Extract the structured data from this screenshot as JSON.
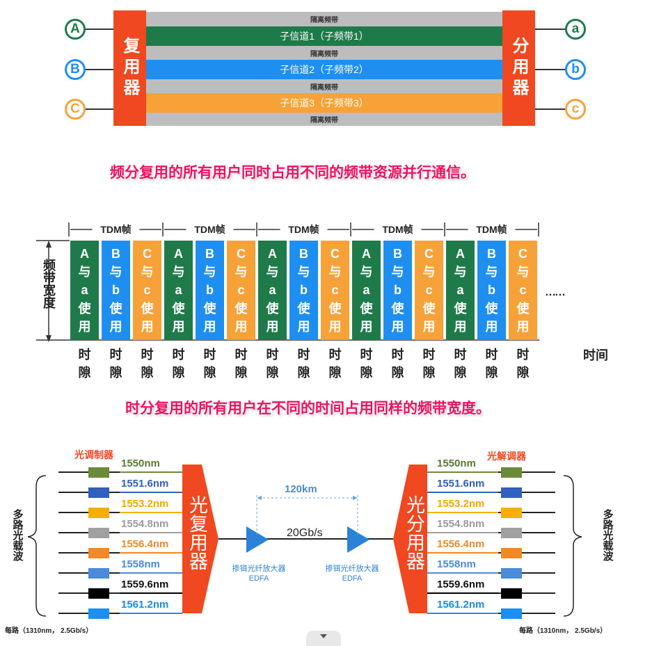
{
  "fdm": {
    "mux_label": "复用器",
    "demux_label": "分用器",
    "inputs": [
      "A",
      "B",
      "C"
    ],
    "outputs": [
      "a",
      "b",
      "c"
    ],
    "guard_label": "隔离频带",
    "channels": [
      "子信道1（子频带1）",
      "子信道2（子频带2）",
      "子信道3（子频带3）"
    ],
    "colors": {
      "green": "#1f7a4a",
      "blue": "#1e8ff0",
      "orange": "#f7a238",
      "red": "#f04820"
    },
    "caption": "频分复用的所有用户同时占用不同的频带资源并行通信。"
  },
  "tdm": {
    "frame_label": "TDM帧",
    "y_label": "频带宽度",
    "x_label": "时间",
    "slot_label": "时隙",
    "ellipsis": "……",
    "frames": [
      {
        "slots": [
          {
            "text": "A与a使用",
            "color": "#1f7a4a"
          },
          {
            "text": "B与b使用",
            "color": "#1e8ff0"
          },
          {
            "text": "C与c使用",
            "color": "#f7a238"
          }
        ]
      },
      {
        "slots": [
          {
            "text": "A与a使用",
            "color": "#1f7a4a"
          },
          {
            "text": "B与b使用",
            "color": "#1e8ff0"
          },
          {
            "text": "C与c使用",
            "color": "#f7a238"
          }
        ]
      },
      {
        "slots": [
          {
            "text": "A与a使用",
            "color": "#1f7a4a"
          },
          {
            "text": "B与b使用",
            "color": "#1e8ff0"
          },
          {
            "text": "C与c使用",
            "color": "#f7a238"
          }
        ]
      },
      {
        "slots": [
          {
            "text": "A与a使用",
            "color": "#1f7a4a"
          },
          {
            "text": "B与b使用",
            "color": "#1e8ff0"
          },
          {
            "text": "C与c使用",
            "color": "#f7a238"
          }
        ]
      },
      {
        "slots": [
          {
            "text": "A与a使用",
            "color": "#1f7a4a"
          },
          {
            "text": "B与b使用",
            "color": "#1e8ff0"
          },
          {
            "text": "C与c使用",
            "color": "#f7a238"
          }
        ]
      }
    ],
    "caption": "时分复用的所有用户在不同的时间占用同样的频带宽度。"
  },
  "wdm": {
    "modulator_label": "光调制器",
    "demodulator_label": "光解调器",
    "mux_label": "光复用器",
    "demux_label": "光分用器",
    "left_side_label": "多路光载波",
    "right_side_label": "多路光载波",
    "distance": "120km",
    "rate": "20Gb/s",
    "amp_label": "掺铒光纤放大器",
    "amp_sub": "EDFA",
    "per_channel_left": "每路（1310nm， 2.5Gb/s）",
    "per_channel_right": "每路（1310nm， 2.5Gb/s）",
    "wavelengths": [
      {
        "label": "1550nm",
        "text_color": "#5a7a2e",
        "box": "#6b8a3a"
      },
      {
        "label": "1551.6nm",
        "text_color": "#2f5fbf",
        "box": "#3060c0"
      },
      {
        "label": "1553.2nm",
        "text_color": "#f0a800",
        "box": "#f4b000"
      },
      {
        "label": "1554.8nm",
        "text_color": "#9a9a9a",
        "box": "#a0a0a0"
      },
      {
        "label": "1556.4nm",
        "text_color": "#f08a28",
        "box": "#f08a28"
      },
      {
        "label": "1558nm",
        "text_color": "#4a8ad8",
        "box": "#4a8ad8"
      },
      {
        "label": "1559.6nm",
        "text_color": "#111111",
        "box": "#000000"
      },
      {
        "label": "1561.2nm",
        "text_color": "#1a8ae8",
        "box": "#1a90f0"
      }
    ]
  }
}
